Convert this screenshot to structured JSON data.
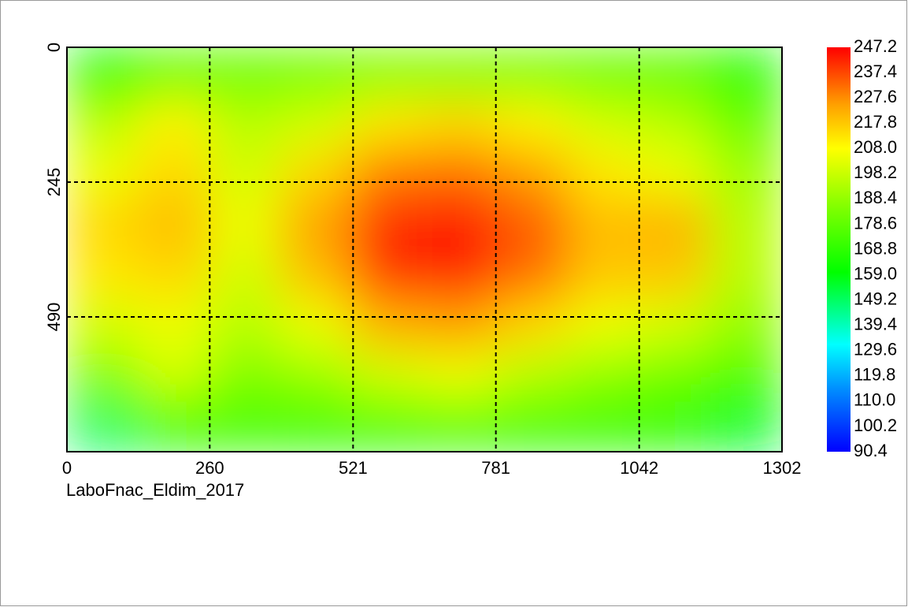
{
  "chart_data": {
    "type": "heatmap",
    "caption": "LaboFnac_Eldim_2017",
    "xlim": [
      0,
      1302
    ],
    "xticks": [
      0,
      260,
      521,
      781,
      1042,
      1302
    ],
    "ylim": [
      0,
      735
    ],
    "yticks": [
      0,
      245,
      490
    ],
    "grid": true,
    "values": [
      [
        160,
        178,
        180,
        182,
        185,
        185,
        183,
        180,
        178,
        165
      ],
      [
        195,
        210,
        195,
        200,
        212,
        215,
        210,
        200,
        195,
        180
      ],
      [
        205,
        215,
        200,
        215,
        230,
        232,
        225,
        212,
        205,
        190
      ],
      [
        215,
        220,
        205,
        225,
        242,
        245,
        235,
        220,
        222,
        195
      ],
      [
        212,
        215,
        200,
        220,
        240,
        242,
        232,
        218,
        218,
        195
      ],
      [
        200,
        205,
        195,
        205,
        222,
        225,
        215,
        205,
        200,
        188
      ],
      [
        185,
        200,
        185,
        190,
        200,
        205,
        195,
        188,
        182,
        175
      ],
      [
        150,
        170,
        172,
        170,
        170,
        172,
        170,
        170,
        168,
        155
      ]
    ],
    "colorscale": [
      [
        90.4,
        "#0000ff"
      ],
      [
        115,
        "#0090ff"
      ],
      [
        132,
        "#00ffff"
      ],
      [
        160,
        "#00ff00"
      ],
      [
        185,
        "#80ff00"
      ],
      [
        208,
        "#ffff00"
      ],
      [
        225,
        "#ffa000"
      ],
      [
        247.2,
        "#ff0000"
      ]
    ],
    "colorbar_lim": [
      90.4,
      247.2
    ],
    "colorbar_ticks": [
      247.2,
      237.4,
      227.6,
      217.8,
      {
        "value": 208,
        "label": "208.0"
      },
      198.2,
      188.4,
      178.6,
      168.8,
      {
        "value": 159,
        "label": "159.0"
      },
      149.2,
      139.4,
      129.6,
      119.8,
      {
        "value": 110,
        "label": "110.0"
      },
      100.2,
      90.4
    ]
  }
}
